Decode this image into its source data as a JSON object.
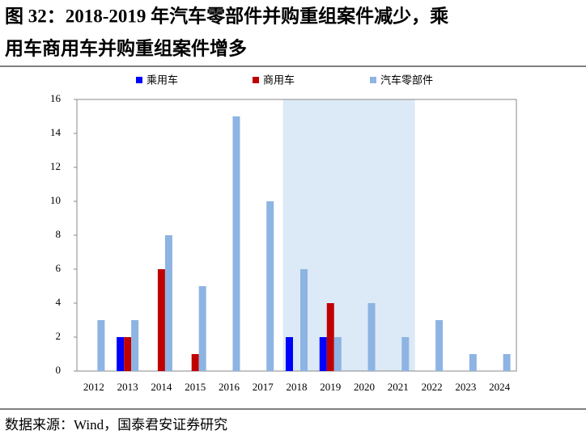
{
  "chart_data": {
    "type": "bar",
    "title": [
      "图 32：2018-2019 年汽车零部件并购重组案件减少，乘",
      "用车商用车并购重组案件增多"
    ],
    "source": "数据来源：Wind，国泰君安证券研究",
    "categories": [
      "2012",
      "2013",
      "2014",
      "2015",
      "2016",
      "2017",
      "2018",
      "2019",
      "2020",
      "2021",
      "2022",
      "2023",
      "2024"
    ],
    "series": [
      {
        "name": "乘用车",
        "color": "#0000ff",
        "values": [
          0,
          2,
          0,
          0,
          0,
          0,
          2,
          2,
          0,
          0,
          0,
          0,
          0
        ]
      },
      {
        "name": "商用车",
        "color": "#c00000",
        "values": [
          0,
          2,
          6,
          1,
          0,
          0,
          0,
          4,
          0,
          0,
          0,
          0,
          0
        ]
      },
      {
        "name": "汽车零部件",
        "color": "#8db4e2",
        "values": [
          3,
          3,
          8,
          5,
          15,
          10,
          6,
          2,
          4,
          2,
          3,
          1,
          1
        ]
      }
    ],
    "ylim": [
      0,
      16
    ],
    "yticks": [
      0,
      2,
      4,
      6,
      8,
      10,
      12,
      14,
      16
    ],
    "grid": false,
    "legend": "top"
  }
}
